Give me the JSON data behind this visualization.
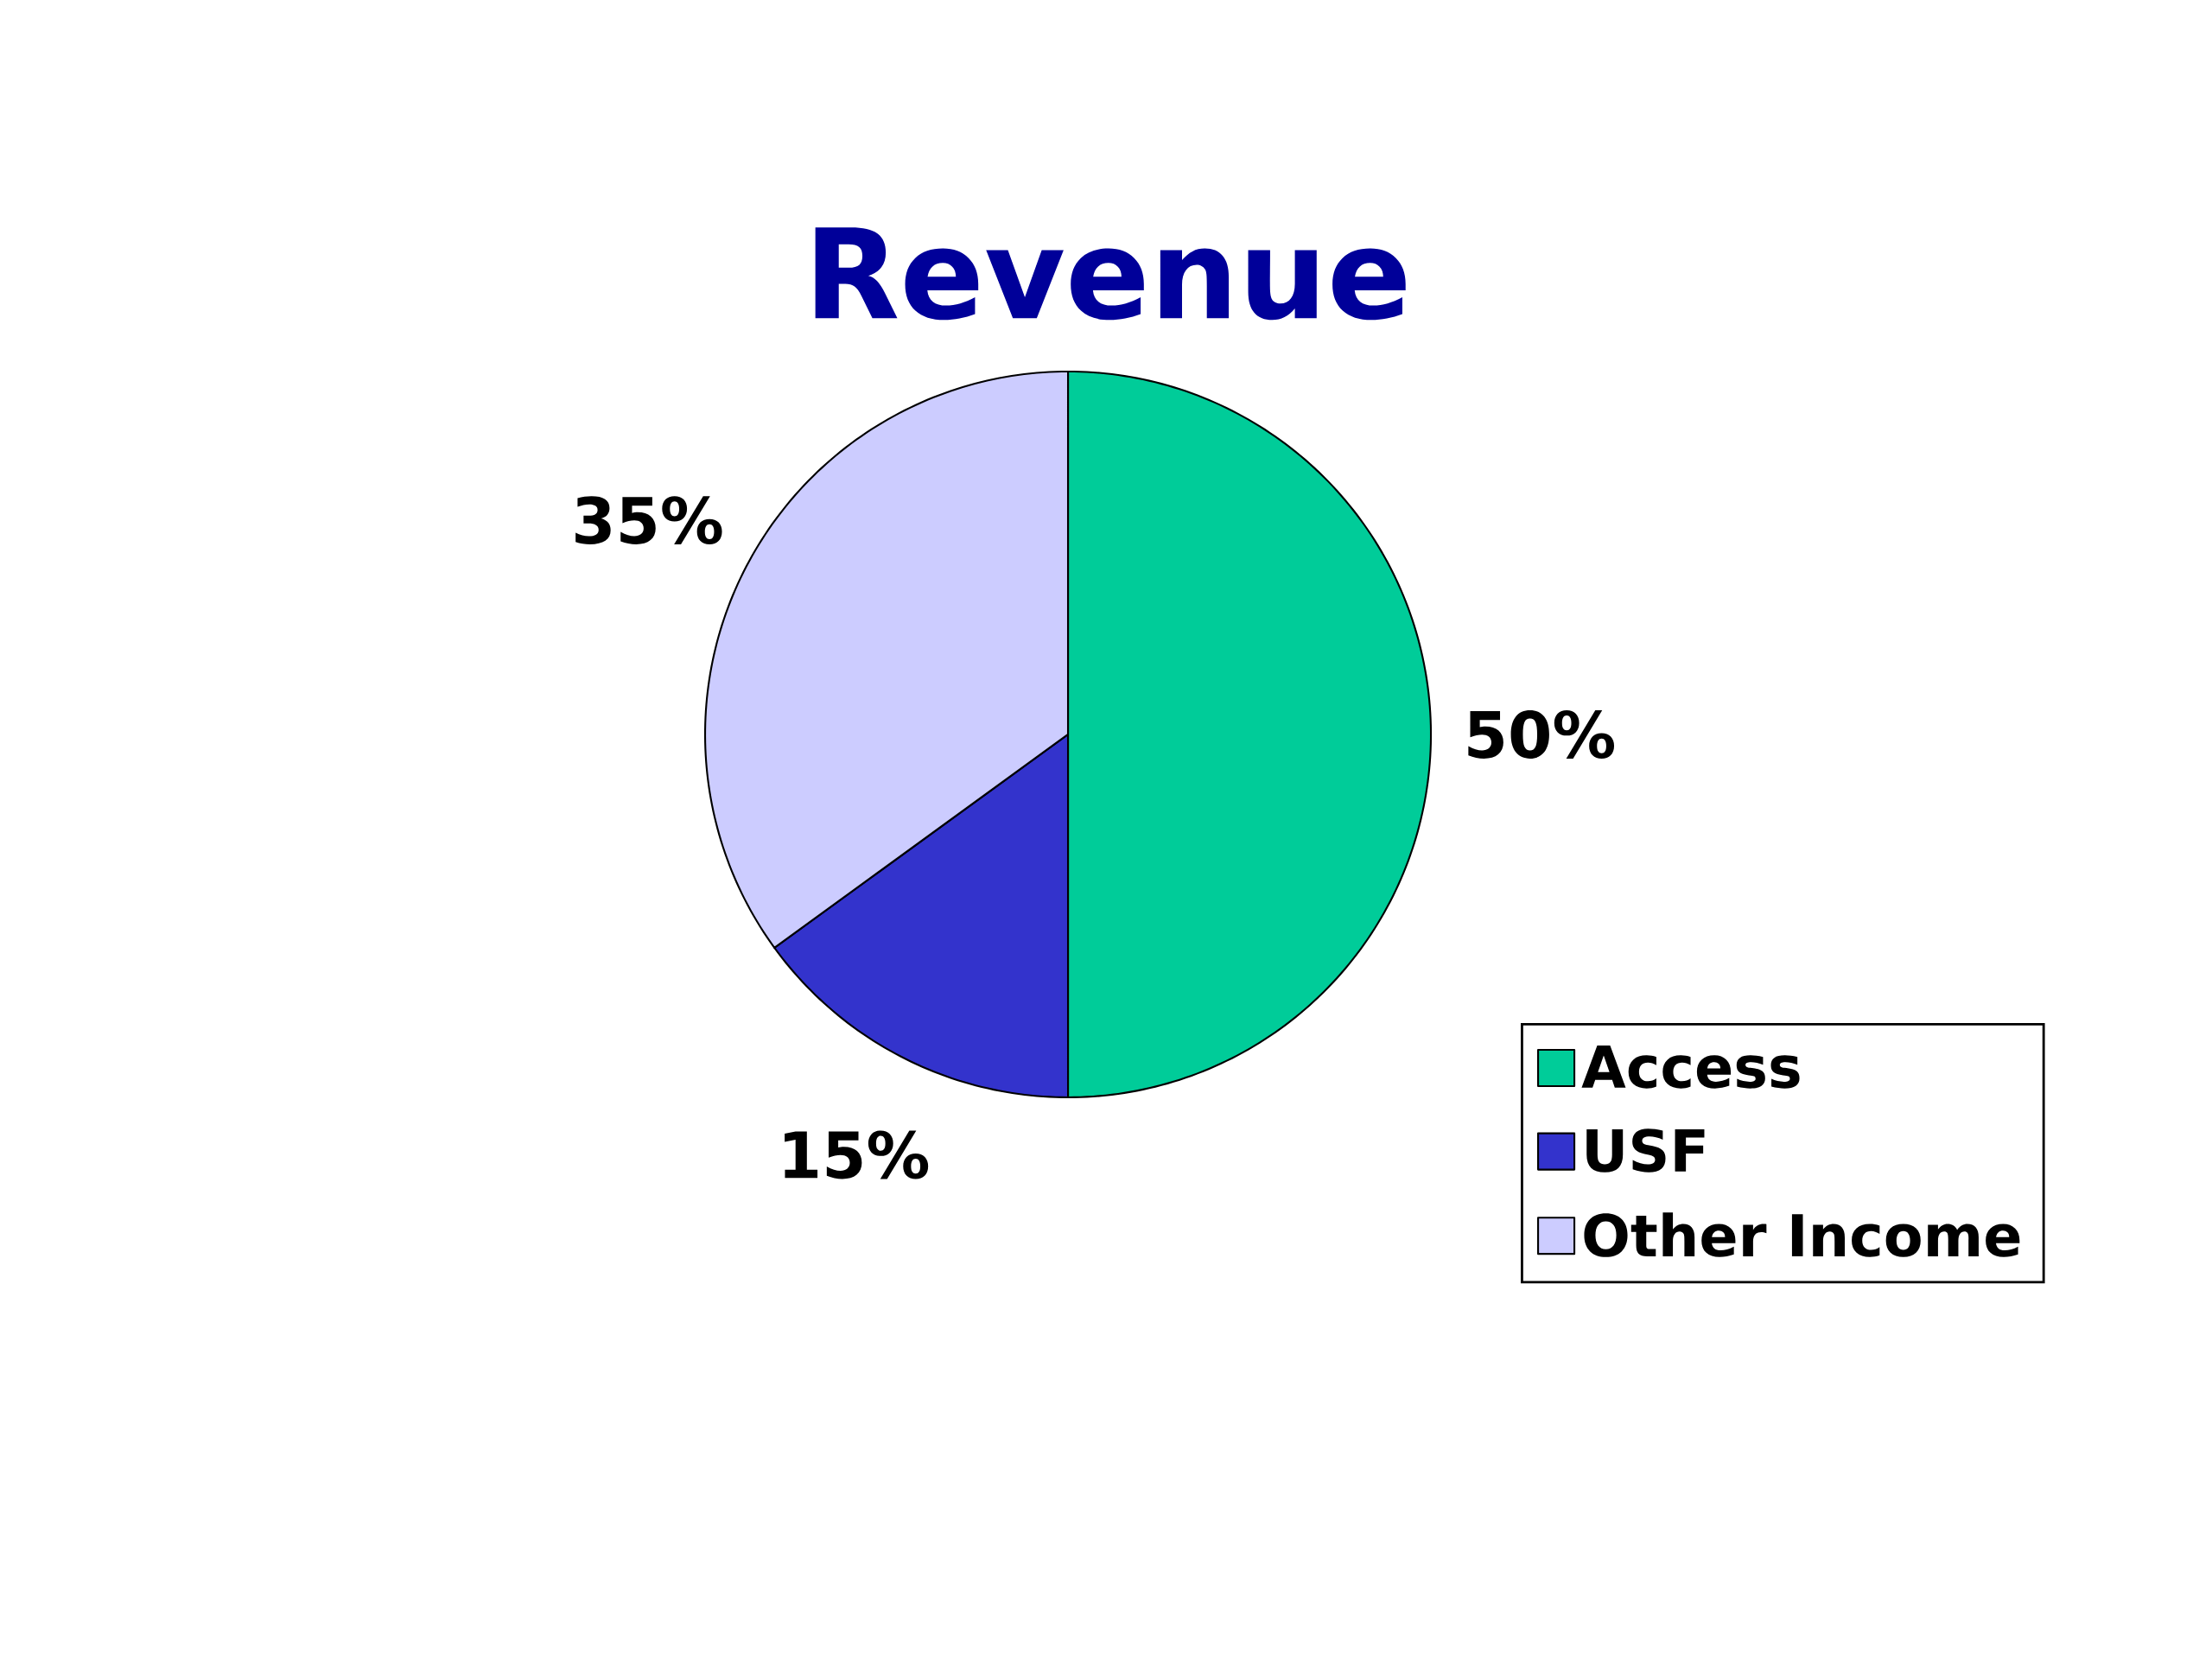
{
  "chart_data": {
    "type": "pie",
    "title": "Revenue",
    "categories": [
      "Access",
      "USF",
      "Other Income"
    ],
    "values": [
      50,
      15,
      35
    ],
    "colors": [
      "#00cc99",
      "#3333cc",
      "#ccccff"
    ],
    "value_labels": [
      "50%",
      "15%",
      "35%"
    ],
    "legend": "bottom right"
  }
}
